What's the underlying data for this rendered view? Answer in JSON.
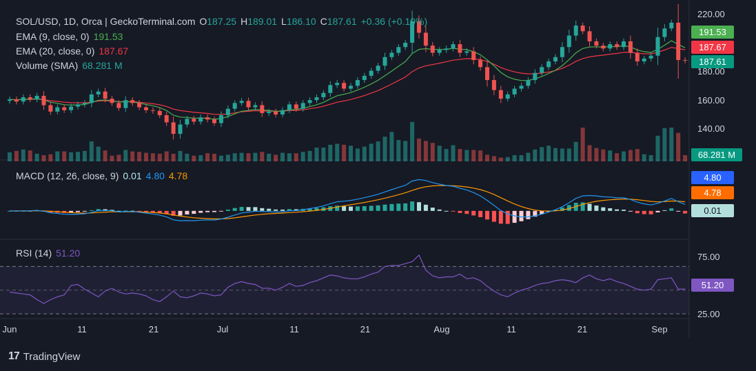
{
  "legend": {
    "symbol": "SOL/USD, 1D, Orca | GeckoTerminal.com",
    "o_label": "O",
    "o_value": "187.25",
    "h_label": "H",
    "h_value": "189.01",
    "l_label": "L",
    "l_value": "186.10",
    "c_label": "C",
    "c_value": "187.61",
    "change": "+0.36 (+0.19%)",
    "ema9_label": "EMA (9, close, 0)",
    "ema9_value": "191.53",
    "ema20_label": "EMA (20, close, 0)",
    "ema20_value": "187.67",
    "volume_label": "Volume (SMA)",
    "volume_value": "68.281 M",
    "macd_label": "MACD (12, 26, close, 9)",
    "macd_hist": "0.01",
    "macd_line": "4.80",
    "macd_signal": "4.78",
    "rsi_label": "RSI (14)",
    "rsi_value": "51.20"
  },
  "price_axis": {
    "ticks": [
      "220.00",
      "200.00",
      "180.00",
      "160.00",
      "140.00"
    ],
    "ema9_pill": "191.53",
    "ema20_pill": "187.67",
    "close_pill": "187.61",
    "volume_pill": "68.281 M"
  },
  "macd_axis": {
    "line_pill": "4.80",
    "signal_pill": "4.78",
    "hist_pill": "0.01"
  },
  "rsi_axis": {
    "ticks": [
      "75.00",
      "25.00"
    ],
    "value_pill": "51.20"
  },
  "time_axis": [
    "Jun",
    "11",
    "21",
    "Jul",
    "11",
    "21",
    "Aug",
    "11",
    "21",
    "Sep"
  ],
  "branding": {
    "name": "TradingView"
  },
  "colors": {
    "background": "#161a25",
    "up": "#26a69a",
    "down": "#ef5350",
    "ema9": "#4caf50",
    "ema20": "#f23645",
    "macd_line": "#2962ff",
    "macd_signal": "#ff6d00",
    "rsi": "#7e57c2",
    "close_pill": "#089981"
  },
  "chart_data": [
    {
      "type": "candlestick",
      "symbol": "SOL/USD",
      "interval": "1D",
      "x_start": "2024-06-01",
      "ylim": [
        125,
        225
      ],
      "close": [
        160.5,
        159,
        162,
        160.5,
        163,
        156.5,
        152,
        155,
        153,
        155.5,
        157,
        158,
        164,
        166,
        161,
        158,
        154.5,
        160,
        158,
        155,
        153,
        152.5,
        149.5,
        144.5,
        136.5,
        143,
        147,
        145,
        148,
        146.5,
        144,
        149.5,
        154,
        158,
        159.5,
        155,
        156.5,
        151,
        152,
        150,
        153,
        157,
        154,
        158,
        160,
        162,
        165,
        170.5,
        172,
        168,
        170,
        174,
        177,
        180.5,
        184,
        190,
        193,
        197,
        200,
        215,
        207,
        198,
        193,
        195,
        196,
        199,
        193,
        194,
        188,
        183,
        174,
        167,
        161,
        164,
        168,
        170,
        174,
        179,
        183,
        187,
        190,
        197,
        205,
        212,
        208,
        201,
        198,
        196,
        199,
        197,
        201,
        193,
        187,
        189,
        191,
        204,
        210,
        214,
        188,
        187.6
      ],
      "volume": [
        19,
        22,
        25,
        23,
        16,
        13,
        15,
        21,
        21,
        19,
        20,
        22,
        42,
        31,
        23,
        12,
        14,
        24,
        21,
        20,
        18,
        17,
        16,
        21,
        16,
        22,
        16,
        12,
        13,
        17,
        16,
        12,
        14,
        17,
        18,
        17,
        18,
        20,
        16,
        14,
        18,
        17,
        17,
        20,
        22,
        29,
        29,
        35,
        37,
        35,
        33,
        27,
        31,
        37,
        42,
        52,
        62,
        45,
        43,
        83,
        48,
        43,
        39,
        33,
        26,
        34,
        26,
        24,
        24,
        23,
        14,
        11,
        8,
        9,
        13,
        13,
        18,
        25,
        30,
        33,
        28,
        27,
        27,
        41,
        71,
        34,
        28,
        25,
        23,
        17,
        21,
        24,
        26,
        15,
        13,
        54,
        70,
        71,
        60,
        13
      ],
      "ema9_last": 191.53,
      "ema20_last": 187.67,
      "volume_sma_last": "68.281 M"
    },
    {
      "type": "line",
      "name": "MACD (12, 26, close, 9)",
      "x_start": "2024-06-01",
      "ylim": [
        -10,
        17
      ],
      "macd_last": 4.8,
      "signal_last": 4.78,
      "hist_last": 0.01
    },
    {
      "type": "line",
      "name": "RSI (14)",
      "x_start": "2024-06-01",
      "ylim": [
        20,
        100
      ],
      "bands": [
        75,
        50,
        25
      ],
      "values": [
        48,
        47,
        46,
        45,
        40,
        36,
        40,
        43,
        45,
        55,
        56,
        51,
        47,
        43,
        49,
        52,
        48,
        46,
        47,
        46,
        44,
        40,
        38,
        43,
        49,
        43,
        42,
        44,
        47,
        46,
        44,
        45,
        53,
        57,
        59,
        57,
        56,
        52,
        52,
        50,
        53,
        57,
        54,
        55,
        58,
        60,
        63,
        66,
        65,
        63,
        62,
        62,
        64,
        67,
        69,
        75,
        76,
        76,
        78,
        80,
        87,
        71,
        65,
        63,
        64,
        64,
        67,
        62,
        63,
        60,
        54,
        49,
        45,
        43,
        47,
        50,
        52,
        55,
        57,
        58,
        60,
        61,
        60,
        58,
        63,
        66,
        62,
        60,
        62,
        59,
        57,
        54,
        51,
        50,
        51,
        61,
        62,
        63,
        51,
        51.2
      ],
      "rsi_last": 51.2
    }
  ]
}
